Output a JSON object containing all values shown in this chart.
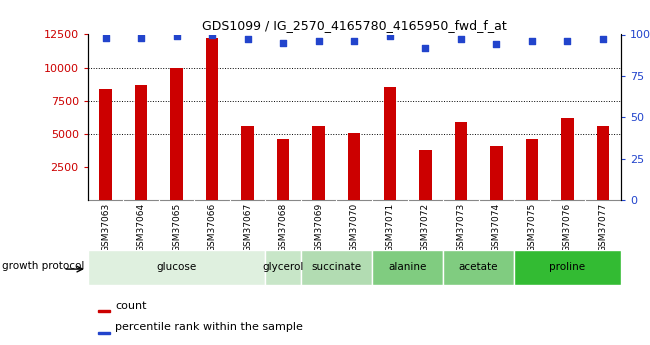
{
  "title": "GDS1099 / IG_2570_4165780_4165950_fwd_f_at",
  "samples": [
    "GSM37063",
    "GSM37064",
    "GSM37065",
    "GSM37066",
    "GSM37067",
    "GSM37068",
    "GSM37069",
    "GSM37070",
    "GSM37071",
    "GSM37072",
    "GSM37073",
    "GSM37074",
    "GSM37075",
    "GSM37076",
    "GSM37077"
  ],
  "counts": [
    8400,
    8700,
    10000,
    12200,
    5600,
    4600,
    5600,
    5100,
    8500,
    3800,
    5900,
    4100,
    4600,
    6200,
    5600
  ],
  "percentiles": [
    98,
    98,
    99,
    100,
    97,
    95,
    96,
    96,
    99,
    92,
    97,
    94,
    96,
    96,
    97
  ],
  "groups": [
    {
      "label": "glucose",
      "start": 0,
      "end": 4,
      "color": "#dff0df"
    },
    {
      "label": "glycerol",
      "start": 5,
      "end": 5,
      "color": "#c8e6c8"
    },
    {
      "label": "succinate",
      "start": 6,
      "end": 7,
      "color": "#b2dcb2"
    },
    {
      "label": "alanine",
      "start": 8,
      "end": 9,
      "color": "#80cc80"
    },
    {
      "label": "acetate",
      "start": 10,
      "end": 11,
      "color": "#80cc80"
    },
    {
      "label": "proline",
      "start": 12,
      "end": 14,
      "color": "#33bb33"
    }
  ],
  "bar_color": "#cc0000",
  "dot_color": "#2244cc",
  "ylim_left": [
    0,
    12500
  ],
  "ylim_right": [
    0,
    100
  ],
  "yticks_left": [
    2500,
    5000,
    7500,
    10000,
    12500
  ],
  "yticks_right": [
    0,
    25,
    50,
    75,
    100
  ],
  "grid_values": [
    5000,
    7500,
    10000
  ],
  "plot_bg": "#ffffff",
  "xtick_bg": "#cccccc",
  "legend_count_label": "count",
  "legend_pct_label": "percentile rank within the sample",
  "growth_protocol_label": "growth protocol"
}
